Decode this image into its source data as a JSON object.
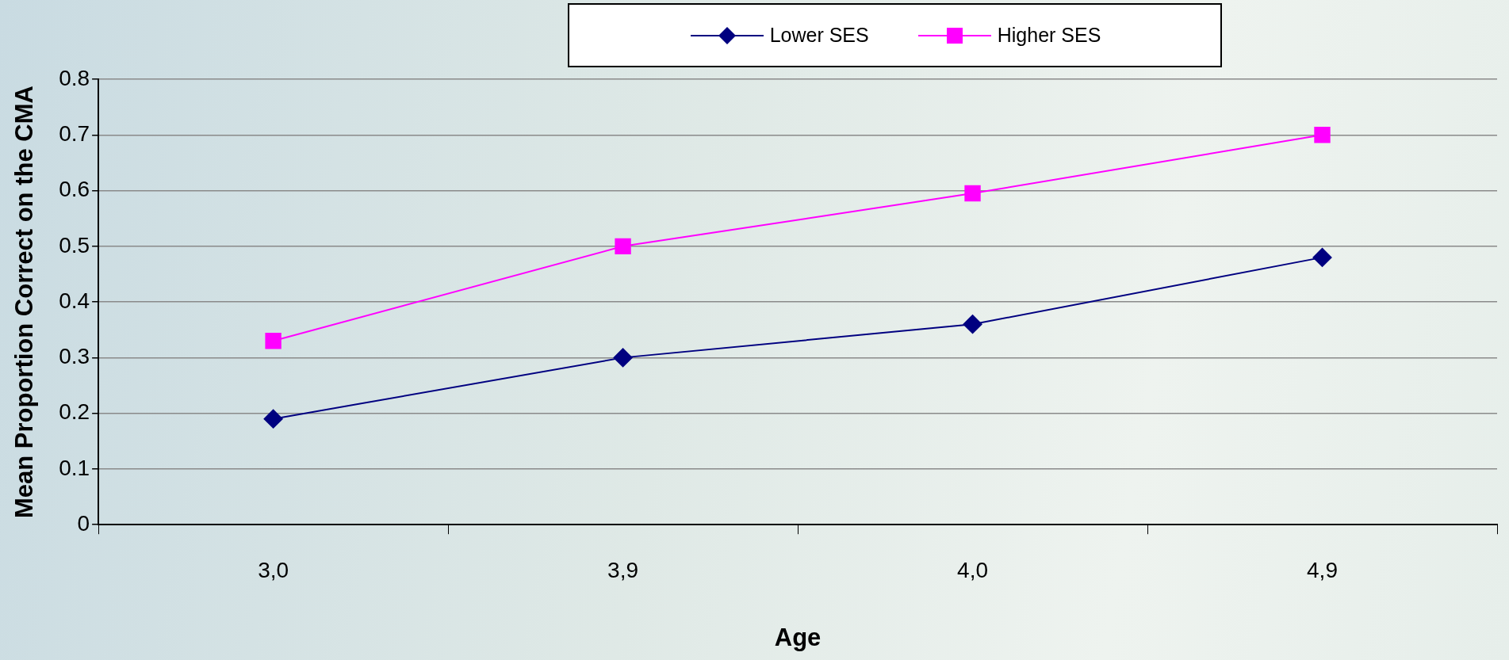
{
  "chart_data": {
    "type": "line",
    "xlabel": "Age",
    "ylabel": "Mean Proportion Correct on the CMA",
    "categories": [
      "3,0",
      "3,9",
      "4,0",
      "4,9"
    ],
    "series": [
      {
        "name": "Lower SES",
        "color": "#000080",
        "marker": "diamond",
        "values": [
          0.19,
          0.3,
          0.36,
          0.48
        ]
      },
      {
        "name": "Higher SES",
        "color": "#ff00ff",
        "marker": "square",
        "values": [
          0.33,
          0.5,
          0.595,
          0.7
        ]
      }
    ],
    "ylim": [
      0,
      0.8
    ],
    "yticks": [
      0,
      0.1,
      0.2,
      0.3,
      0.4,
      0.5,
      0.6,
      0.7,
      0.8
    ],
    "grid": "y",
    "legend": "top",
    "line_style": "solid"
  }
}
